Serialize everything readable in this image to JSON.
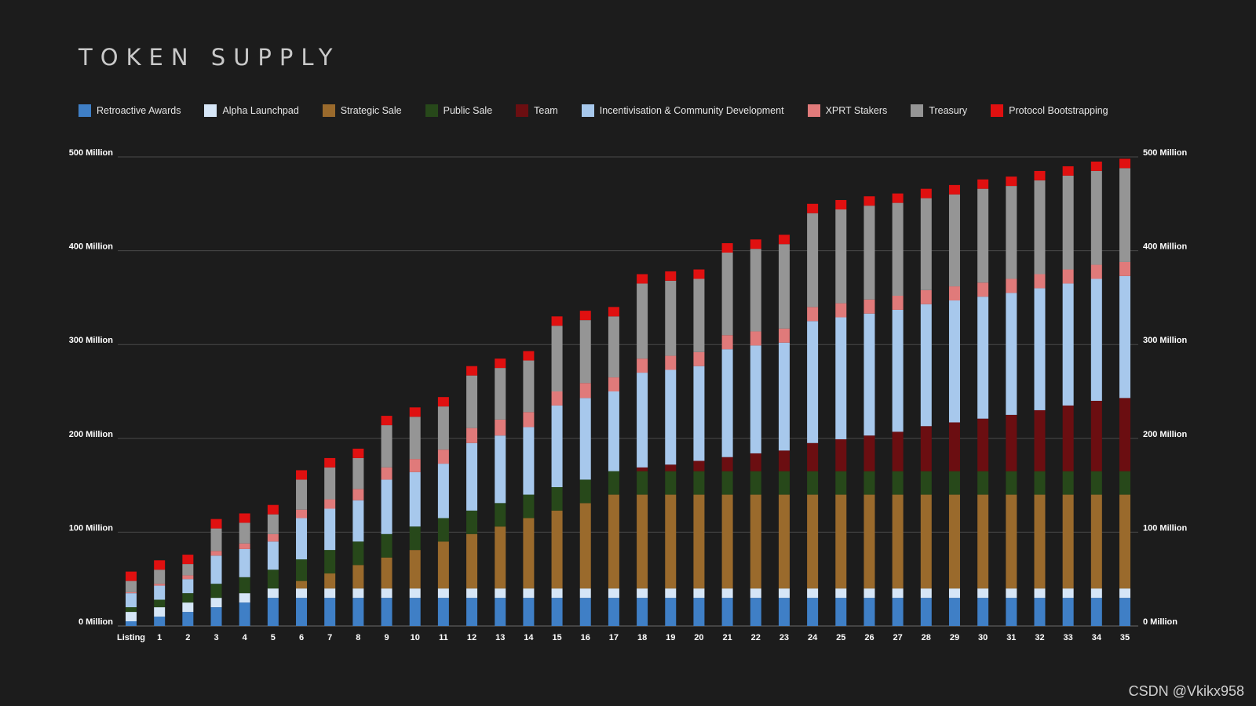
{
  "page": {
    "title": "TOKEN SUPPLY",
    "watermark": "CSDN @Vkikx958"
  },
  "chart_data": {
    "type": "bar",
    "stacked": true,
    "title": "TOKEN SUPPLY",
    "xlabel": "",
    "ylabel": "",
    "ylim": [
      0,
      500
    ],
    "yticks": [
      "0 Million",
      "100 Million",
      "200 Million",
      "300 Million",
      "400 Million",
      "500 Million"
    ],
    "grid": true,
    "legend_position": "top",
    "categories": [
      "Listing",
      "1",
      "2",
      "3",
      "4",
      "5",
      "6",
      "7",
      "8",
      "9",
      "10",
      "11",
      "12",
      "13",
      "14",
      "15",
      "16",
      "17",
      "18",
      "19",
      "20",
      "21",
      "22",
      "23",
      "24",
      "25",
      "26",
      "27",
      "28",
      "29",
      "30",
      "31",
      "32",
      "33",
      "34",
      "35"
    ],
    "series": [
      {
        "name": "Retroactive Awards",
        "color": "#3f7fc6",
        "values": [
          5,
          10,
          15,
          20,
          25,
          30,
          30,
          30,
          30,
          30,
          30,
          30,
          30,
          30,
          30,
          30,
          30,
          30,
          30,
          30,
          30,
          30,
          30,
          30,
          30,
          30,
          30,
          30,
          30,
          30,
          30,
          30,
          30,
          30,
          30,
          30
        ]
      },
      {
        "name": "Alpha Launchpad",
        "color": "#d6e6f7",
        "values": [
          10,
          10,
          10,
          10,
          10,
          10,
          10,
          10,
          10,
          10,
          10,
          10,
          10,
          10,
          10,
          10,
          10,
          10,
          10,
          10,
          10,
          10,
          10,
          10,
          10,
          10,
          10,
          10,
          10,
          10,
          10,
          10,
          10,
          10,
          10,
          10
        ]
      },
      {
        "name": "Strategic Sale",
        "color": "#9a6a2c",
        "values": [
          0,
          0,
          0,
          0,
          0,
          0,
          8,
          16,
          25,
          33,
          41,
          50,
          58,
          66,
          75,
          83,
          91,
          100,
          100,
          100,
          100,
          100,
          100,
          100,
          100,
          100,
          100,
          100,
          100,
          100,
          100,
          100,
          100,
          100,
          100,
          100
        ]
      },
      {
        "name": "Public Sale",
        "color": "#27481a",
        "values": [
          5,
          8,
          10,
          15,
          17,
          20,
          23,
          25,
          25,
          25,
          25,
          25,
          25,
          25,
          25,
          25,
          25,
          25,
          25,
          25,
          25,
          25,
          25,
          25,
          25,
          25,
          25,
          25,
          25,
          25,
          25,
          25,
          25,
          25,
          25,
          25
        ]
      },
      {
        "name": "Team",
        "color": "#6b0e11",
        "values": [
          0,
          0,
          0,
          0,
          0,
          0,
          0,
          0,
          0,
          0,
          0,
          0,
          0,
          0,
          0,
          0,
          0,
          0,
          4,
          7,
          11,
          15,
          19,
          22,
          30,
          34,
          38,
          42,
          48,
          52,
          56,
          60,
          65,
          70,
          75,
          78
        ]
      },
      {
        "name": "Incentivisation & Community Development",
        "color": "#a7c8ec",
        "values": [
          15,
          15,
          15,
          30,
          30,
          30,
          44,
          44,
          44,
          58,
          58,
          58,
          72,
          72,
          72,
          87,
          87,
          85,
          101,
          101,
          101,
          115,
          115,
          115,
          130,
          130,
          130,
          130,
          130,
          130,
          130,
          130,
          130,
          130,
          130,
          130
        ]
      },
      {
        "name": "XPRT Stakers",
        "color": "#e07a7a",
        "values": [
          1,
          2,
          4,
          5,
          6,
          8,
          9,
          10,
          12,
          13,
          14,
          15,
          16,
          17,
          16,
          15,
          16,
          15,
          15,
          15,
          15,
          15,
          15,
          15,
          15,
          15,
          15,
          15,
          15,
          15,
          15,
          15,
          15,
          15,
          15,
          15
        ]
      },
      {
        "name": "Treasury",
        "color": "#959595",
        "values": [
          12,
          15,
          12,
          24,
          22,
          21,
          32,
          34,
          33,
          45,
          45,
          46,
          56,
          55,
          55,
          70,
          67,
          65,
          80,
          80,
          78,
          88,
          88,
          90,
          100,
          100,
          100,
          99,
          98,
          98,
          100,
          99,
          100,
          100,
          100,
          100
        ]
      },
      {
        "name": "Protocol Bootstrapping",
        "color": "#e01010",
        "values": [
          10,
          10,
          10,
          10,
          10,
          10,
          10,
          10,
          10,
          10,
          10,
          10,
          10,
          10,
          10,
          10,
          10,
          10,
          10,
          10,
          10,
          10,
          10,
          10,
          10,
          10,
          10,
          10,
          10,
          10,
          10,
          10,
          10,
          10,
          10,
          10
        ]
      }
    ]
  }
}
